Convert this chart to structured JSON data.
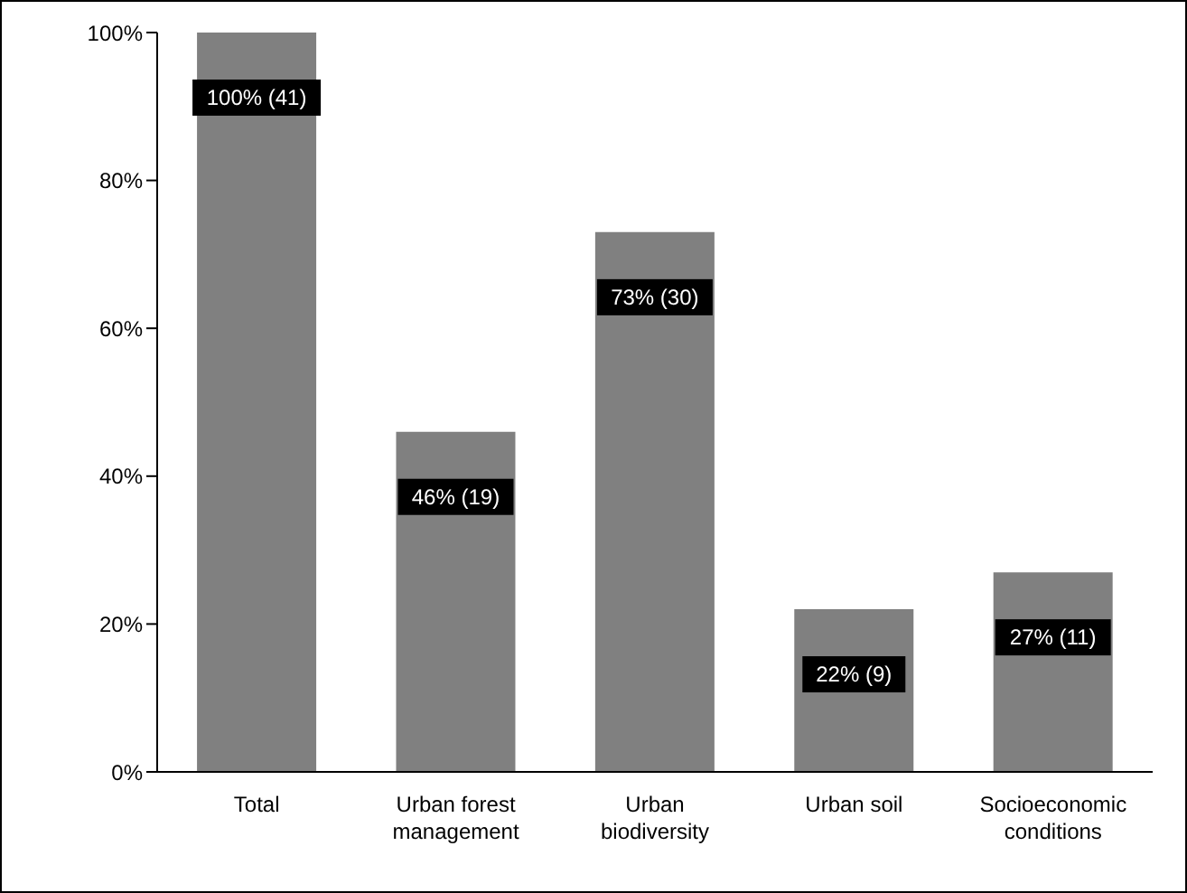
{
  "chart_data": {
    "type": "bar",
    "categories": [
      "Total",
      "Urban forest management",
      "Urban biodiversity",
      "Urban soil",
      "Socioeconomic conditions"
    ],
    "values": [
      100,
      46,
      73,
      22,
      27
    ],
    "value_labels": [
      "100% (41)",
      "46% (19)",
      "73% (30)",
      "22% (9)",
      "27% (11)"
    ],
    "color": "#808080",
    "ylim": [
      0,
      100
    ],
    "yticks": [
      {
        "value": 0,
        "label": "0%"
      },
      {
        "value": 20,
        "label": "20%"
      },
      {
        "value": 40,
        "label": "40%"
      },
      {
        "value": 60,
        "label": "60%"
      },
      {
        "value": 80,
        "label": "80%"
      },
      {
        "value": 100,
        "label": "100%"
      }
    ],
    "grid": false,
    "legend": false
  }
}
